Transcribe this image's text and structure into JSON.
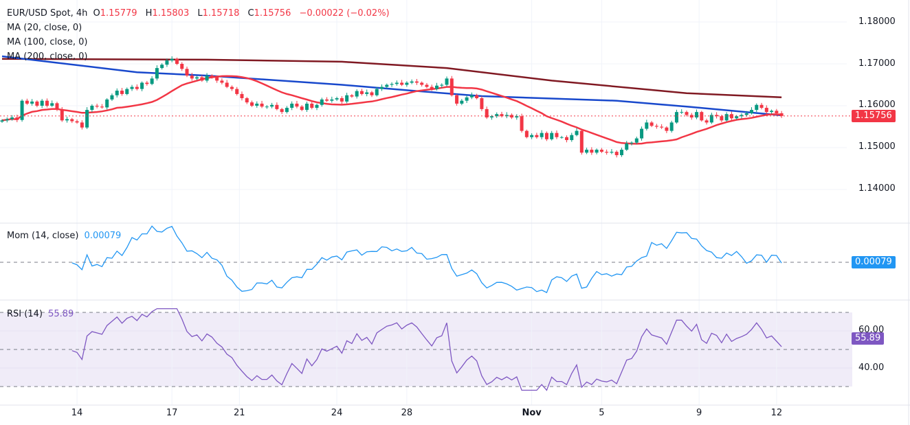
{
  "header": {
    "symbol": "EUR/USD Spot, 4h",
    "o_label": "O",
    "open": "1.15779",
    "h_label": "H",
    "high": "1.15803",
    "l_label": "L",
    "low": "1.15718",
    "c_label": "C",
    "close": "1.15756",
    "change": "−0.00022 (−0.02%)"
  },
  "indicators": {
    "ma20": "MA (20, close, 0)",
    "ma100": "MA (100, close, 0)",
    "ma200": "MA (200, close, 0)",
    "mom_label": "Mom (14, close)",
    "mom_value": "0.00079",
    "rsi_label": "RSI (14)",
    "rsi_value": "55.89"
  },
  "price_axis": [
    "1.18000",
    "1.17000",
    "1.16000",
    "1.15000",
    "1.14000"
  ],
  "current_price": "1.15756",
  "rsi_axis": [
    "60.00",
    "40.00"
  ],
  "colors": {
    "up": "#089981",
    "down": "#f23645",
    "ma20": "#f23645",
    "ma100": "#1848cc",
    "ma200": "#801922",
    "mom": "#2196f3",
    "rsi": "#7e57c2",
    "rsi_band": "#f0ecf8"
  },
  "chart_data": {
    "type": "candlestick",
    "ylim": [
      1.135,
      1.183
    ],
    "x_ticks": [
      {
        "label": "14",
        "index": 15
      },
      {
        "label": "17",
        "index": 34
      },
      {
        "label": "21",
        "index": 47.5
      },
      {
        "label": "24",
        "index": 67
      },
      {
        "label": "28",
        "index": 81
      },
      {
        "label": "Nov",
        "index": 106
      },
      {
        "label": "5",
        "index": 120
      },
      {
        "label": "9",
        "index": 139.5
      },
      {
        "label": "12",
        "index": 155
      }
    ],
    "closes": [
      1.1565,
      1.1568,
      1.1572,
      1.1566,
      1.1612,
      1.1605,
      1.161,
      1.16,
      1.1612,
      1.16,
      1.1606,
      1.1592,
      1.1565,
      1.1568,
      1.1563,
      1.156,
      1.1548,
      1.159,
      1.16,
      1.1598,
      1.1596,
      1.1615,
      1.1625,
      1.1636,
      1.1628,
      1.164,
      1.1645,
      1.164,
      1.1655,
      1.1652,
      1.1665,
      1.169,
      1.1698,
      1.1708,
      1.1712,
      1.17,
      1.1688,
      1.1672,
      1.1665,
      1.1668,
      1.166,
      1.1672,
      1.1668,
      1.166,
      1.1655,
      1.1645,
      1.164,
      1.1628,
      1.1618,
      1.1608,
      1.16,
      1.1605,
      1.1598,
      1.1598,
      1.1602,
      1.1592,
      1.1585,
      1.1595,
      1.1605,
      1.1598,
      1.159,
      1.1605,
      1.1595,
      1.1602,
      1.1615,
      1.1612,
      1.1615,
      1.1618,
      1.161,
      1.1625,
      1.1622,
      1.1635,
      1.1628,
      1.1632,
      1.1625,
      1.164,
      1.1645,
      1.165,
      1.1652,
      1.1655,
      1.165,
      1.1655,
      1.1658,
      1.1655,
      1.165,
      1.1645,
      1.164,
      1.1648,
      1.165,
      1.1665,
      1.1625,
      1.1605,
      1.1612,
      1.162,
      1.1625,
      1.1618,
      1.1592,
      1.1572,
      1.1575,
      1.158,
      1.1575,
      1.1578,
      1.1572,
      1.1575,
      1.154,
      1.1525,
      1.153,
      1.1525,
      1.1535,
      1.152,
      1.1535,
      1.1525,
      1.1525,
      1.1518,
      1.153,
      1.154,
      1.1488,
      1.1495,
      1.1488,
      1.1495,
      1.149,
      1.1488,
      1.149,
      1.1482,
      1.1495,
      1.151,
      1.1512,
      1.1522,
      1.1545,
      1.156,
      1.1552,
      1.155,
      1.1548,
      1.154,
      1.156,
      1.1585,
      1.1585,
      1.1578,
      1.1572,
      1.1585,
      1.1565,
      1.156,
      1.1578,
      1.1575,
      1.1565,
      1.158,
      1.157,
      1.1575,
      1.1578,
      1.1582,
      1.159,
      1.1602,
      1.1595,
      1.1585,
      1.1588,
      1.1582,
      1.15756
    ],
    "ma100": [
      [
        0,
        1.1718
      ],
      [
        27,
        1.168
      ],
      [
        41,
        1.1672
      ],
      [
        68,
        1.165
      ],
      [
        82,
        1.1636
      ],
      [
        96,
        1.1623
      ],
      [
        123,
        1.1612
      ],
      [
        137,
        1.1598
      ],
      [
        156,
        1.1577
      ]
    ],
    "ma200": [
      [
        0,
        1.1712
      ],
      [
        41,
        1.171
      ],
      [
        68,
        1.1705
      ],
      [
        89,
        1.169
      ],
      [
        110,
        1.166
      ],
      [
        137,
        1.163
      ],
      [
        156,
        1.162
      ]
    ],
    "rsi_levels": [
      70,
      50,
      30
    ]
  }
}
